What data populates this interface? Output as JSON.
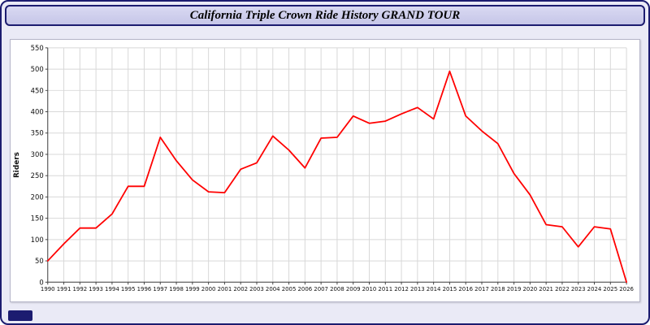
{
  "window": {
    "title": "California Triple Crown Ride History GRAND TOUR"
  },
  "colors": {
    "frame_border": "#1c1c70",
    "titlebar_bg": "#ccccee",
    "page_bg": "#eaeaf6",
    "plot_bg": "#ffffff",
    "grid": "#d8d8d8",
    "line": "#ff0000"
  },
  "chart_data": {
    "type": "line",
    "title": "California Triple Crown Ride History GRAND TOUR",
    "xlabel": "",
    "ylabel": "Riders",
    "ylim": [
      0,
      550
    ],
    "ytick_step": 50,
    "yticks": [
      0,
      50,
      100,
      150,
      200,
      250,
      300,
      350,
      400,
      450,
      500,
      550
    ],
    "grid": true,
    "legend": "none",
    "line_color": "#ff0000",
    "categories": [
      "1990",
      "1991",
      "1992",
      "1993",
      "1994",
      "1995",
      "1996",
      "1997",
      "1998",
      "1999",
      "2000",
      "2001",
      "2002",
      "2003",
      "2004",
      "2005",
      "2006",
      "2007",
      "2008",
      "2009",
      "2010",
      "2011",
      "2012",
      "2013",
      "2014",
      "2015",
      "2016",
      "2017",
      "2018",
      "2019",
      "2020",
      "2021",
      "2022",
      "2023",
      "2024",
      "2025",
      "2026"
    ],
    "values": [
      50,
      90,
      127,
      127,
      160,
      225,
      225,
      340,
      285,
      240,
      212,
      210,
      265,
      280,
      343,
      310,
      268,
      338,
      340,
      390,
      373,
      378,
      395,
      410,
      383,
      495,
      390,
      355,
      325,
      255,
      205,
      135,
      130,
      83,
      130,
      125,
      0
    ]
  }
}
